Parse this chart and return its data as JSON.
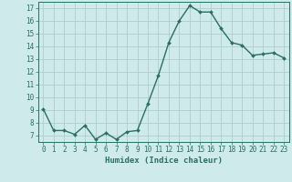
{
  "x": [
    0,
    1,
    2,
    3,
    4,
    5,
    6,
    7,
    8,
    9,
    10,
    11,
    12,
    13,
    14,
    15,
    16,
    17,
    18,
    19,
    20,
    21,
    22,
    23
  ],
  "y": [
    9.1,
    7.4,
    7.4,
    7.1,
    7.8,
    6.7,
    7.2,
    6.7,
    7.3,
    7.4,
    9.5,
    11.7,
    14.3,
    16.0,
    17.2,
    16.7,
    16.7,
    15.4,
    14.3,
    14.1,
    13.3,
    13.4,
    13.5,
    13.1
  ],
  "line_color": "#2a6e65",
  "marker": "D",
  "marker_size": 2.0,
  "line_width": 1.0,
  "background_color": "#ceeaea",
  "grid_color": "#b0cccc",
  "xlabel": "Humidex (Indice chaleur)",
  "ylabel": "",
  "title": "",
  "xlim": [
    -0.5,
    23.5
  ],
  "ylim": [
    6.5,
    17.5
  ],
  "yticks": [
    7,
    8,
    9,
    10,
    11,
    12,
    13,
    14,
    15,
    16,
    17
  ],
  "xticks": [
    0,
    1,
    2,
    3,
    4,
    5,
    6,
    7,
    8,
    9,
    10,
    11,
    12,
    13,
    14,
    15,
    16,
    17,
    18,
    19,
    20,
    21,
    22,
    23
  ],
  "tick_color": "#2a6e65",
  "axis_color": "#2a6e65",
  "xlabel_fontsize": 6.5,
  "tick_labelsize": 5.5
}
